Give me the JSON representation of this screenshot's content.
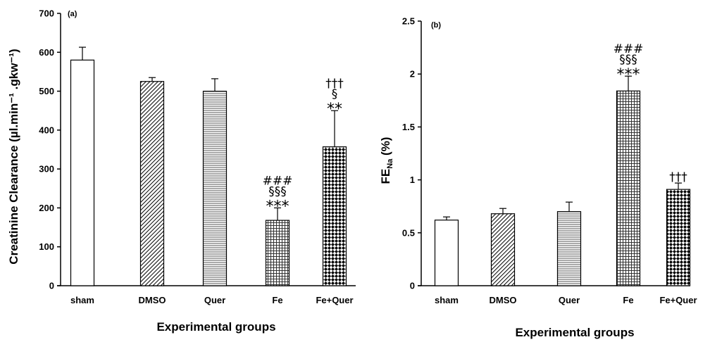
{
  "chart_data": [
    {
      "type": "bar",
      "panel_label": "(a)",
      "categories": [
        "sham",
        "DMSO",
        "Quer",
        "Fe",
        "Fe+Quer"
      ],
      "values": [
        580,
        525,
        500,
        168,
        357
      ],
      "errors": [
        33,
        10,
        32,
        32,
        93
      ],
      "ylim": [
        0,
        700
      ],
      "yticks": [
        0,
        100,
        200,
        300,
        400,
        500,
        600,
        700
      ],
      "ylabel": "Creatinine Clearance (µl.min⁻¹ .gkw⁻¹)",
      "xlabel": "Experimental groups",
      "annotations": [
        {
          "category": "Fe",
          "lines": [
            "###",
            "§§§",
            "***"
          ]
        },
        {
          "category": "Fe+Quer",
          "lines": [
            "†††",
            "§",
            "**"
          ]
        }
      ]
    },
    {
      "type": "bar",
      "panel_label": "(b)",
      "categories": [
        "sham",
        "DMSO",
        "Quer",
        "Fe",
        "Fe+Quer"
      ],
      "values": [
        0.62,
        0.68,
        0.7,
        1.84,
        0.91
      ],
      "errors": [
        0.03,
        0.05,
        0.09,
        0.14,
        0.06
      ],
      "ylim": [
        0,
        2.5
      ],
      "yticks": [
        0,
        0.5,
        1,
        1.5,
        2,
        2.5
      ],
      "ytick_labels": [
        "0",
        "0.5",
        "1",
        "1.5",
        "2",
        "2.5"
      ],
      "ylabel": "FE",
      "ylabel_subscript": "Na",
      "ylabel_suffix": " (%)",
      "xlabel": "Experimental groups",
      "annotations": [
        {
          "category": "Fe",
          "lines": [
            "###",
            "§§§",
            "***"
          ]
        },
        {
          "category": "Fe+Quer",
          "lines": [
            "†††"
          ]
        }
      ]
    }
  ],
  "patterns": [
    "none",
    "diagonal",
    "horizontal",
    "grid",
    "diamond"
  ]
}
